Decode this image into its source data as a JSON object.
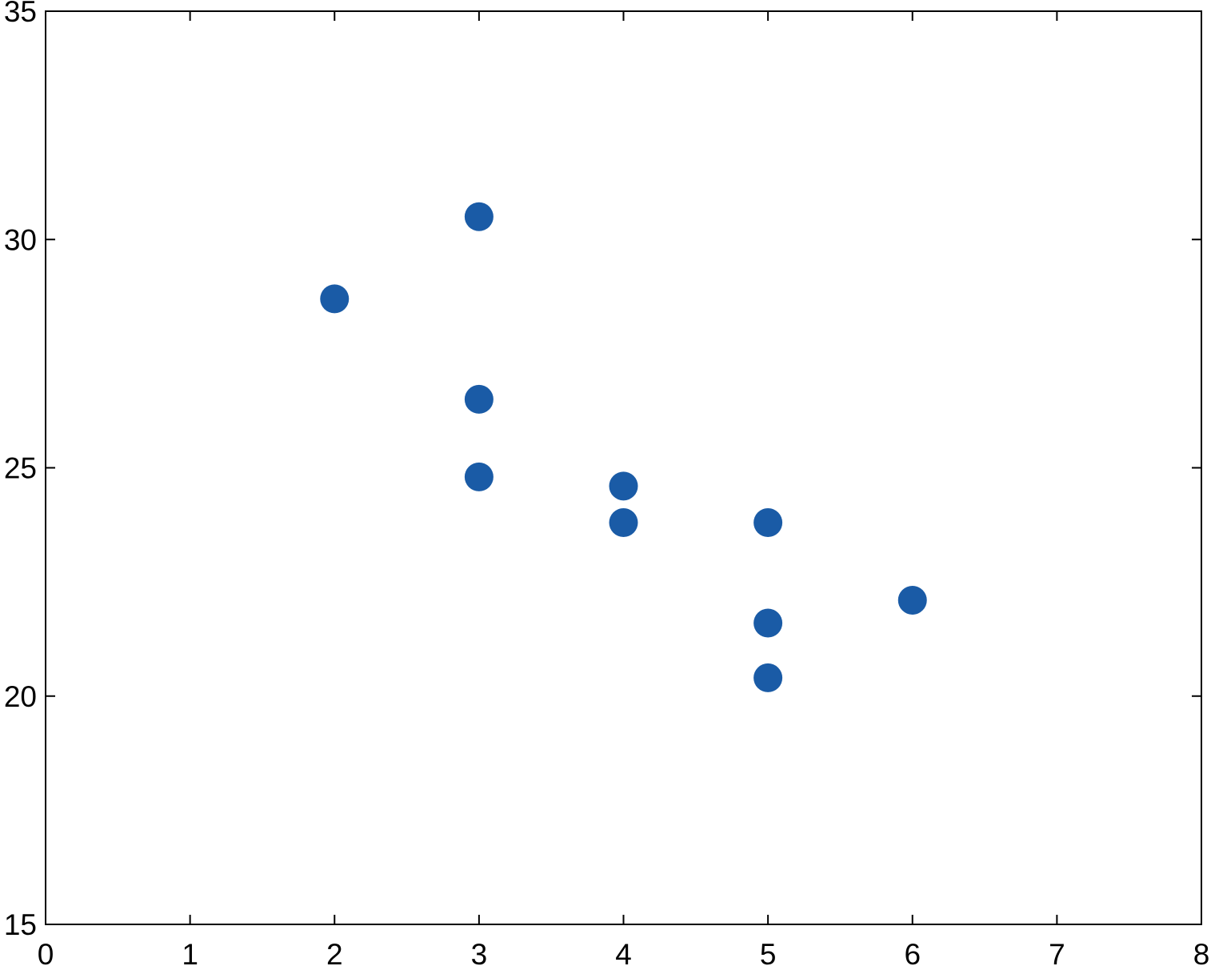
{
  "chart_data": {
    "type": "scatter",
    "title": "",
    "xlabel": "",
    "ylabel": "",
    "xlim": [
      0,
      8
    ],
    "ylim": [
      15,
      35
    ],
    "xticks": [
      "0",
      "1",
      "2",
      "3",
      "4",
      "5",
      "6",
      "7",
      "8"
    ],
    "yticks": [
      "15",
      "20",
      "25",
      "30",
      "35"
    ],
    "grid": false,
    "marker_color": "#1a5ba6",
    "points": [
      {
        "x": 2,
        "y": 28.7
      },
      {
        "x": 3,
        "y": 30.5
      },
      {
        "x": 3,
        "y": 26.5
      },
      {
        "x": 3,
        "y": 24.8
      },
      {
        "x": 4,
        "y": 24.6
      },
      {
        "x": 4,
        "y": 23.8
      },
      {
        "x": 5,
        "y": 23.8
      },
      {
        "x": 5,
        "y": 21.6
      },
      {
        "x": 5,
        "y": 20.4
      },
      {
        "x": 6,
        "y": 22.1
      }
    ]
  }
}
